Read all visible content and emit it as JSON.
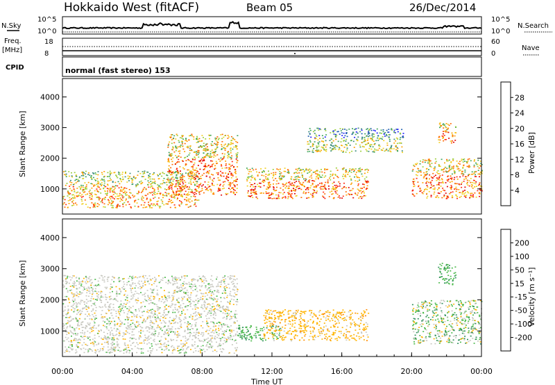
{
  "header": {
    "radar": "Hokkaido West (fitACF)",
    "beam": "Beam 05",
    "date": "26/Dec/2014"
  },
  "top_panel": {
    "left_label": "N.Sky",
    "left_tick_top": "10^5",
    "left_tick_bottom": "10^0",
    "right_label": "N.Search",
    "right_tick_top": "10^5",
    "right_tick_bottom": "10^0"
  },
  "freq_panel": {
    "left_label_1": "Freq.",
    "left_label_2": "[MHz]",
    "left_tick_top": "18",
    "left_tick_bottom": "8",
    "right_label": "Nave",
    "right_tick_top": "60",
    "right_tick_bottom": "0"
  },
  "cpid_panel": {
    "label": "CPID",
    "mode": "normal (fast stereo) 153"
  },
  "power_colorbar": {
    "label": "Power [dB]",
    "ticks": [
      "28",
      "24",
      "20",
      "16",
      "12",
      "8",
      "4"
    ],
    "colors": [
      "#1a1aff",
      "#1f5fb0",
      "#3a8a7a",
      "#3fa55a",
      "#9bcf3a",
      "#f0d020",
      "#ffa000",
      "#ff6a00",
      "#ff2a10",
      "#e00000"
    ]
  },
  "velocity_colorbar": {
    "label": "Velocity [m s⁻¹]",
    "ticks": [
      "200",
      "100",
      "50",
      "15",
      "-15",
      "-50",
      "-100",
      "-200"
    ],
    "colors": [
      "#2040c0",
      "#3a6fa8",
      "#2f8f5a",
      "#48b848",
      "#c8c8c0",
      "#ffb400",
      "#ff8a00",
      "#ff5a00",
      "#e01010"
    ]
  },
  "chart_data": [
    {
      "type": "heatmap",
      "panel": "power",
      "ylabel": "Slant Range [km]",
      "xlabel": "",
      "ylim": [
        180,
        4600
      ],
      "xlim": [
        0,
        24
      ],
      "y_ticks": [
        "4000",
        "3000",
        "2000",
        "1000"
      ],
      "regions": [
        {
          "x0": 0.0,
          "x1": 7.8,
          "r0": 400,
          "r1": 1600,
          "level": "high-mid"
        },
        {
          "x0": 6.0,
          "x1": 10.0,
          "r0": 800,
          "r1": 2800,
          "level": "high"
        },
        {
          "x0": 10.5,
          "x1": 17.5,
          "r0": 700,
          "r1": 1700,
          "level": "high"
        },
        {
          "x0": 14.0,
          "x1": 19.5,
          "r0": 2200,
          "r1": 3000,
          "level": "mid"
        },
        {
          "x0": 20.0,
          "x1": 24.0,
          "r0": 700,
          "r1": 2000,
          "level": "high"
        },
        {
          "x0": 21.5,
          "x1": 22.5,
          "r0": 2500,
          "r1": 3200,
          "level": "high"
        }
      ]
    },
    {
      "type": "heatmap",
      "panel": "velocity",
      "ylabel": "Slant Range [km]",
      "xlabel": "Time UT",
      "ylim": [
        180,
        4600
      ],
      "xlim": [
        0,
        24
      ],
      "y_ticks": [
        "4000",
        "3000",
        "2000",
        "1000"
      ],
      "x_ticks": [
        "00:00",
        "04:00",
        "08:00",
        "12:00",
        "16:00",
        "20:00",
        "00:00"
      ],
      "regions": [
        {
          "x0": 0.0,
          "x1": 10.0,
          "r0": 300,
          "r1": 2800,
          "level": "near-zero"
        },
        {
          "x0": 10.0,
          "x1": 12.5,
          "r0": 700,
          "r1": 1200,
          "level": "positive"
        },
        {
          "x0": 11.5,
          "x1": 17.5,
          "r0": 700,
          "r1": 1700,
          "level": "negative"
        },
        {
          "x0": 20.0,
          "x1": 24.0,
          "r0": 600,
          "r1": 2000,
          "level": "mixed"
        },
        {
          "x0": 21.5,
          "x1": 22.5,
          "r0": 2500,
          "r1": 3200,
          "level": "positive"
        }
      ]
    }
  ]
}
